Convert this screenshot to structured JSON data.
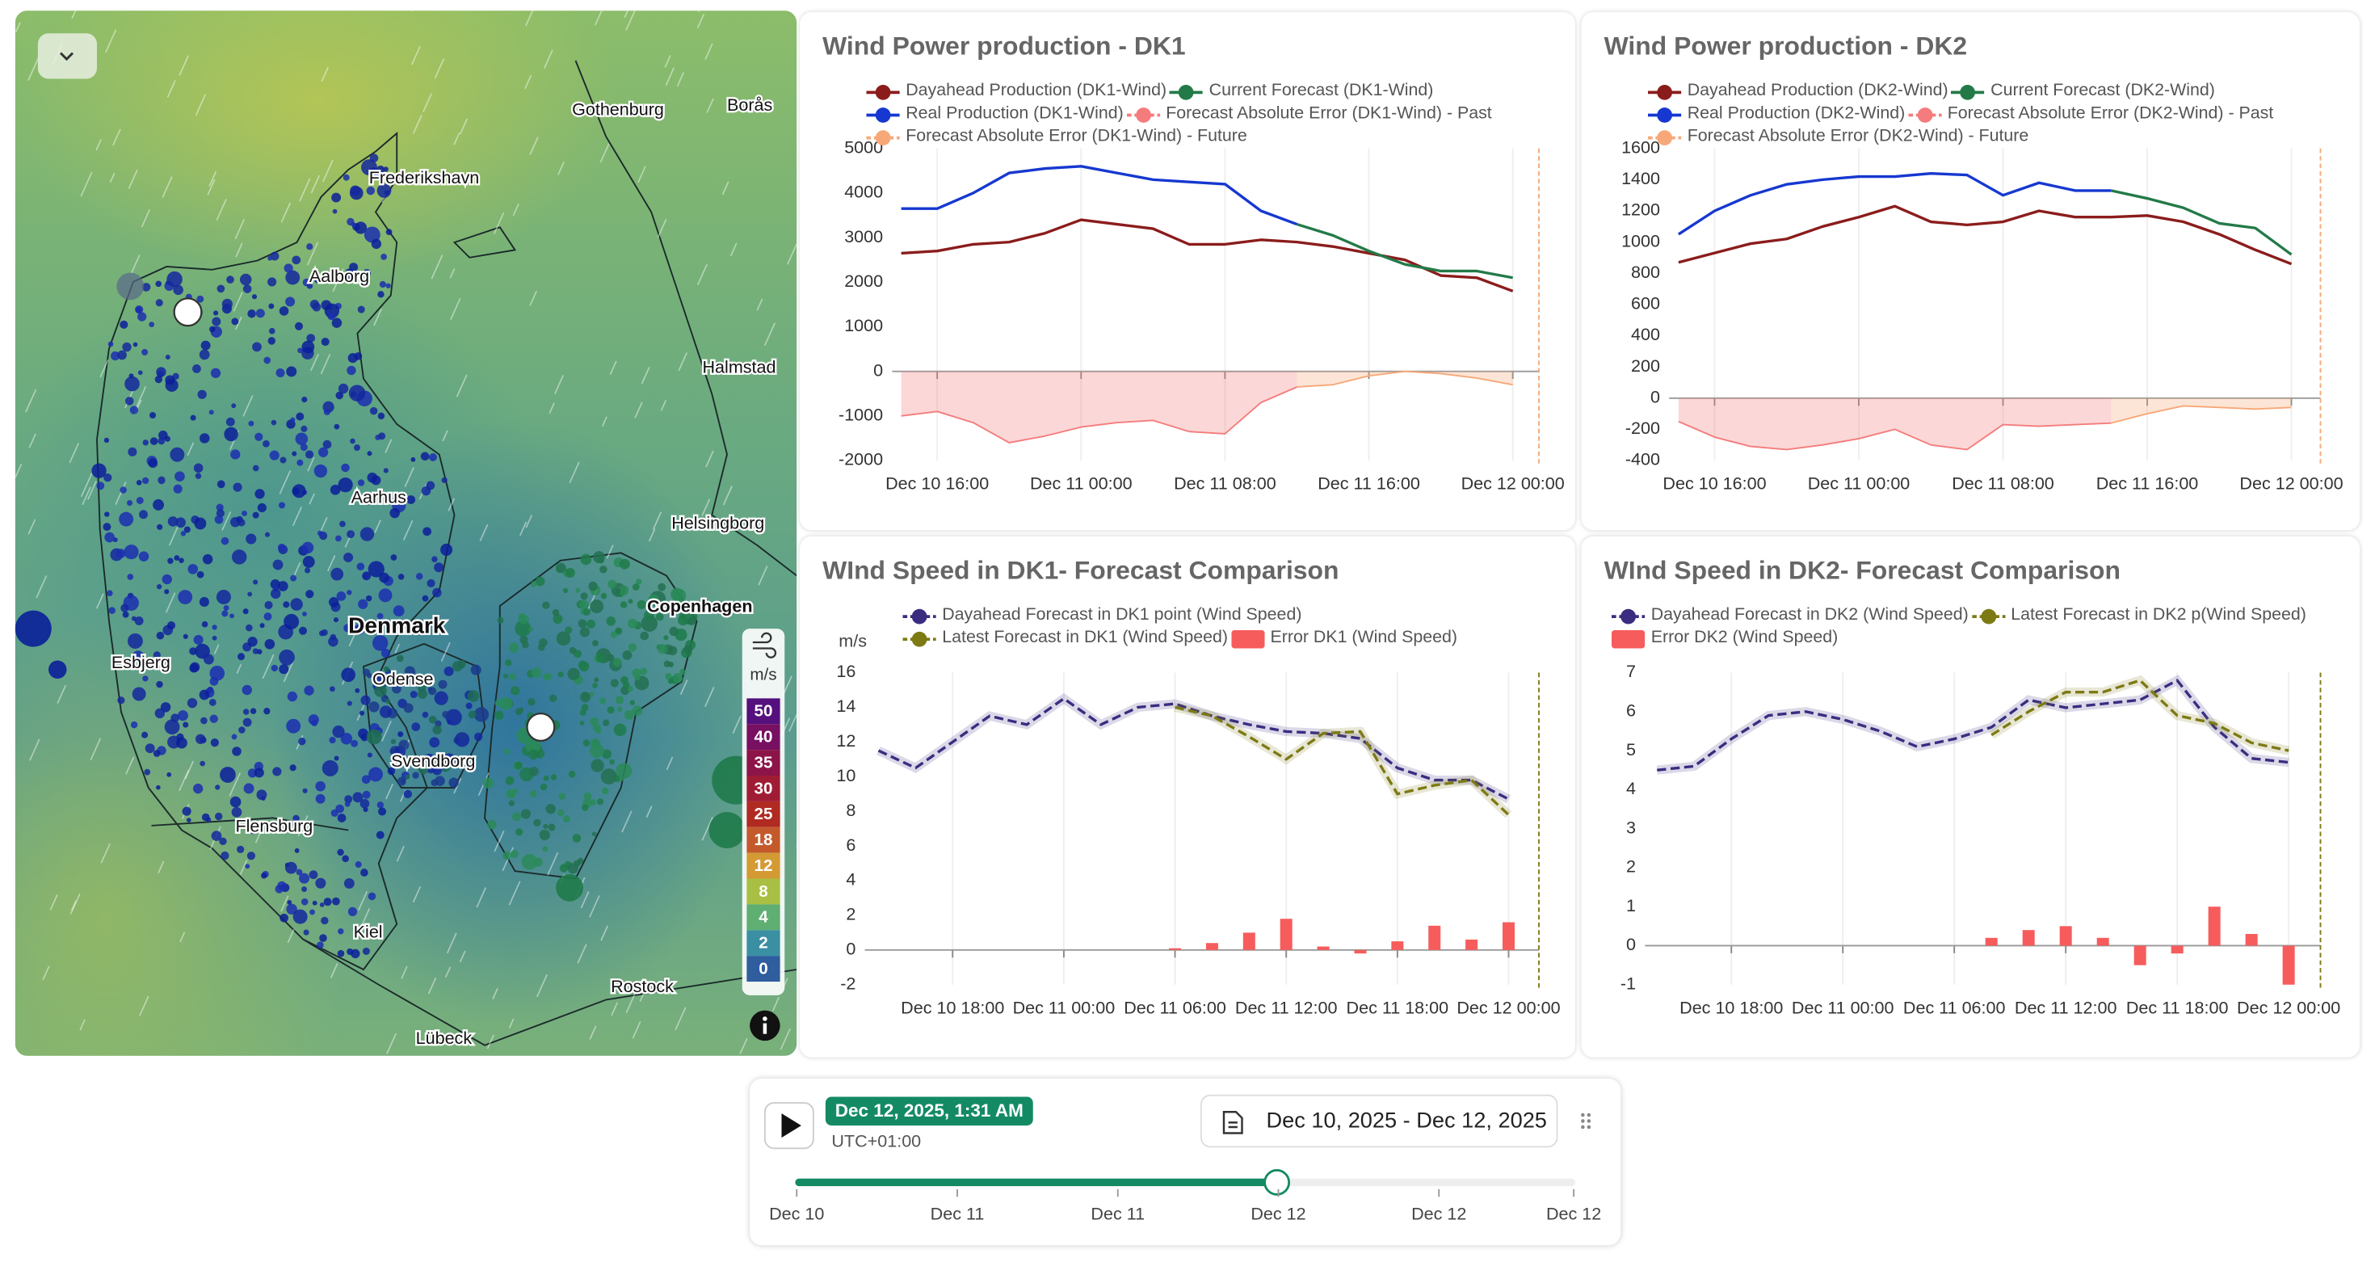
{
  "map": {
    "places": [
      "Gothenburg",
      "Borås",
      "Frederikshavn",
      "Aalborg",
      "Halmstad",
      "Aarhus",
      "Helsingborg",
      "Denmark",
      "Copenhagen",
      "Esbjerg",
      "Odense",
      "Svendborg",
      "Flensburg",
      "Kiel",
      "Rostock",
      "Lübeck"
    ],
    "legend": {
      "unit": "m/s",
      "values": [
        50,
        40,
        35,
        30,
        25,
        18,
        12,
        8,
        4,
        2,
        0
      ],
      "colors": [
        "#55107e",
        "#781062",
        "#8c1448",
        "#a01c34",
        "#b02a22",
        "#c45a2c",
        "#d49a34",
        "#a8bf44",
        "#5fae72",
        "#3a8fa2",
        "#2f5e9e"
      ]
    }
  },
  "timeline": {
    "time": "Dec 12, 2025, 1:31 AM",
    "timezone": "UTC+01:00",
    "range": "Dec 10, 2025 - Dec 12, 2025",
    "ticks": [
      "Dec 10",
      "Dec 11",
      "Dec 11",
      "Dec 12",
      "Dec 12",
      "Dec 12"
    ]
  },
  "chart_data": [
    {
      "type": "line",
      "title": "Wind Power production - DK1",
      "categories": [
        "Dec 10 14:00",
        "Dec 10 16:00",
        "Dec 10 18:00",
        "Dec 10 20:00",
        "Dec 10 22:00",
        "Dec 11 00:00",
        "Dec 11 02:00",
        "Dec 11 04:00",
        "Dec 11 06:00",
        "Dec 11 08:00",
        "Dec 11 10:00",
        "Dec 11 12:00",
        "Dec 11 14:00",
        "Dec 11 16:00",
        "Dec 11 18:00",
        "Dec 11 20:00",
        "Dec 11 22:00",
        "Dec 12 00:00"
      ],
      "xticks": [
        "Dec 10 16:00",
        "Dec 11 00:00",
        "Dec 11 08:00",
        "Dec 11 16:00",
        "Dec 12 00:00"
      ],
      "ylim": [
        -2000,
        5000
      ],
      "yticks": [
        -2000,
        -1000,
        0,
        1000,
        2000,
        3000,
        4000,
        5000
      ],
      "grid": "x",
      "series": [
        {
          "name": "Dayahead Production (DK1-Wind)",
          "color": "#8b1c1c",
          "kind": "line",
          "values": [
            2650,
            2700,
            2850,
            2900,
            3100,
            3400,
            3300,
            3200,
            2850,
            2850,
            2950,
            2900,
            2800,
            2650,
            2500,
            2150,
            2100,
            1800
          ]
        },
        {
          "name": "Current Forecast (DK1-Wind)",
          "color": "#237a48",
          "kind": "line",
          "values": [
            null,
            null,
            null,
            null,
            null,
            null,
            null,
            null,
            null,
            null,
            null,
            3300,
            3050,
            2700,
            2400,
            2250,
            2250,
            2100
          ]
        },
        {
          "name": "Real Production (DK1-Wind)",
          "color": "#1638d0",
          "kind": "line",
          "values": [
            3650,
            3650,
            4000,
            4450,
            4550,
            4600,
            4450,
            4300,
            4250,
            4200,
            3600,
            3300,
            null,
            null,
            null,
            null,
            null,
            null
          ]
        },
        {
          "name": "Forecast Absolute Error (DK1-Wind) - Past",
          "color": "#f47c7c",
          "kind": "area",
          "values": [
            -1000,
            -900,
            -1150,
            -1600,
            -1450,
            -1250,
            -1150,
            -1100,
            -1350,
            -1400,
            -700,
            -350,
            null,
            null,
            null,
            null,
            null,
            null
          ]
        },
        {
          "name": "Forecast Absolute Error (DK1-Wind) - Future",
          "color": "#f6a878",
          "kind": "area",
          "values": [
            null,
            null,
            null,
            null,
            null,
            null,
            null,
            null,
            null,
            null,
            null,
            -350,
            -300,
            -100,
            0,
            -50,
            -150,
            -300
          ]
        }
      ]
    },
    {
      "type": "line",
      "title": "Wind Power production - DK2",
      "categories": [
        "Dec 10 14:00",
        "Dec 10 16:00",
        "Dec 10 18:00",
        "Dec 10 20:00",
        "Dec 10 22:00",
        "Dec 11 00:00",
        "Dec 11 02:00",
        "Dec 11 04:00",
        "Dec 11 06:00",
        "Dec 11 08:00",
        "Dec 11 10:00",
        "Dec 11 12:00",
        "Dec 11 14:00",
        "Dec 11 16:00",
        "Dec 11 18:00",
        "Dec 11 20:00",
        "Dec 11 22:00",
        "Dec 12 00:00"
      ],
      "xticks": [
        "Dec 10 16:00",
        "Dec 11 00:00",
        "Dec 11 08:00",
        "Dec 11 16:00",
        "Dec 12 00:00"
      ],
      "ylim": [
        -400,
        1600
      ],
      "yticks": [
        -400,
        -200,
        0,
        200,
        400,
        600,
        800,
        1000,
        1200,
        1400,
        1600
      ],
      "grid": "x",
      "series": [
        {
          "name": "Dayahead Production (DK2-Wind)",
          "color": "#8b1c1c",
          "kind": "line",
          "values": [
            870,
            930,
            990,
            1020,
            1100,
            1160,
            1230,
            1130,
            1110,
            1130,
            1200,
            1160,
            1160,
            1170,
            1130,
            1050,
            950,
            860
          ]
        },
        {
          "name": "Current Forecast (DK2-Wind)",
          "color": "#237a48",
          "kind": "line",
          "values": [
            null,
            null,
            null,
            null,
            null,
            null,
            null,
            null,
            null,
            null,
            null,
            null,
            1330,
            1280,
            1220,
            1120,
            1090,
            920
          ]
        },
        {
          "name": "Real Production (DK2-Wind)",
          "color": "#1638d0",
          "kind": "line",
          "values": [
            1050,
            1200,
            1300,
            1370,
            1400,
            1420,
            1420,
            1440,
            1430,
            1300,
            1380,
            1330,
            1330,
            null,
            null,
            null,
            null,
            null
          ]
        },
        {
          "name": "Forecast Absolute Error (DK2-Wind) - Past",
          "color": "#f47c7c",
          "kind": "area",
          "values": [
            -150,
            -250,
            -310,
            -330,
            -300,
            -260,
            -200,
            -300,
            -330,
            -170,
            -180,
            -170,
            -160,
            null,
            null,
            null,
            null,
            null
          ]
        },
        {
          "name": "Forecast Absolute Error (DK2-Wind) - Future",
          "color": "#f6a878",
          "kind": "area",
          "values": [
            null,
            null,
            null,
            null,
            null,
            null,
            null,
            null,
            null,
            null,
            null,
            null,
            -160,
            -100,
            -50,
            -60,
            -70,
            -60
          ]
        }
      ]
    },
    {
      "type": "line",
      "title": "WInd Speed in DK1- Forecast Comparison",
      "y_label": "m/s",
      "categories": [
        "Dec 10 14:00",
        "Dec 10 16:00",
        "Dec 10 18:00",
        "Dec 10 20:00",
        "Dec 10 22:00",
        "Dec 11 00:00",
        "Dec 11 02:00",
        "Dec 11 04:00",
        "Dec 11 06:00",
        "Dec 11 08:00",
        "Dec 11 10:00",
        "Dec 11 12:00",
        "Dec 11 14:00",
        "Dec 11 16:00",
        "Dec 11 18:00",
        "Dec 11 20:00",
        "Dec 11 22:00",
        "Dec 12 00:00"
      ],
      "xticks": [
        "Dec 10 18:00",
        "Dec 11 00:00",
        "Dec 11 06:00",
        "Dec 11 12:00",
        "Dec 11 18:00",
        "Dec 12 00:00"
      ],
      "ylim": [
        -2,
        16
      ],
      "yticks": [
        -2,
        0,
        2,
        4,
        6,
        8,
        10,
        12,
        14,
        16
      ],
      "grid": "x",
      "series": [
        {
          "name": "Dayahead Forecast in DK1 point (Wind Speed)",
          "color": "#3a2d80",
          "kind": "line",
          "dash": true,
          "values": [
            11.5,
            10.5,
            12,
            13.5,
            13,
            14.5,
            13,
            14,
            14.2,
            13.5,
            13,
            12.6,
            12.5,
            12.2,
            10.5,
            9.8,
            9.8,
            8.7
          ]
        },
        {
          "name": "Latest Forecast in DK1 (Wind Speed)",
          "color": "#7d7a14",
          "kind": "line",
          "dash": true,
          "values": [
            null,
            null,
            null,
            null,
            null,
            null,
            null,
            null,
            14,
            13.5,
            12.3,
            11,
            12.5,
            12.6,
            9,
            9.5,
            9.8,
            7.8
          ]
        },
        {
          "name": "Error DK1 (Wind Speed)",
          "color": "#f75c5c",
          "kind": "bar",
          "values": [
            null,
            null,
            null,
            null,
            null,
            null,
            null,
            null,
            0.1,
            0.4,
            1,
            1.8,
            0.2,
            -0.2,
            0.5,
            1.4,
            0.6,
            1.6
          ]
        }
      ]
    },
    {
      "type": "line",
      "title": "WInd Speed in DK2- Forecast Comparison",
      "categories": [
        "Dec 10 14:00",
        "Dec 10 16:00",
        "Dec 10 18:00",
        "Dec 10 20:00",
        "Dec 10 22:00",
        "Dec 11 00:00",
        "Dec 11 02:00",
        "Dec 11 04:00",
        "Dec 11 06:00",
        "Dec 11 08:00",
        "Dec 11 10:00",
        "Dec 11 12:00",
        "Dec 11 14:00",
        "Dec 11 16:00",
        "Dec 11 18:00",
        "Dec 11 20:00",
        "Dec 11 22:00",
        "Dec 12 00:00"
      ],
      "xticks": [
        "Dec 10 18:00",
        "Dec 11 00:00",
        "Dec 11 06:00",
        "Dec 11 12:00",
        "Dec 11 18:00",
        "Dec 12 00:00"
      ],
      "ylim": [
        -1,
        7
      ],
      "yticks": [
        -1,
        0,
        1,
        2,
        3,
        4,
        5,
        6,
        7
      ],
      "grid": "x",
      "series": [
        {
          "name": "Dayahead Forecast in DK2 (Wind Speed)",
          "color": "#3a2d80",
          "kind": "line",
          "dash": true,
          "values": [
            4.5,
            4.6,
            5.3,
            5.9,
            6,
            5.8,
            5.5,
            5.1,
            5.3,
            5.6,
            6.3,
            6.1,
            6.2,
            6.3,
            6.8,
            5.6,
            4.8,
            4.7
          ]
        },
        {
          "name": "Latest Forecast in DK2 p(Wind Speed)",
          "color": "#7d7a14",
          "kind": "line",
          "dash": true,
          "values": [
            null,
            null,
            null,
            null,
            null,
            null,
            null,
            null,
            null,
            5.4,
            6,
            6.5,
            6.5,
            6.8,
            5.9,
            5.7,
            5.2,
            5
          ]
        },
        {
          "name": "Error DK2 (Wind Speed)",
          "color": "#f75c5c",
          "kind": "bar",
          "values": [
            null,
            null,
            null,
            null,
            null,
            null,
            null,
            null,
            null,
            0.2,
            0.4,
            0.5,
            0.2,
            -0.5,
            -0.2,
            1,
            0.3,
            -1
          ]
        }
      ]
    }
  ]
}
